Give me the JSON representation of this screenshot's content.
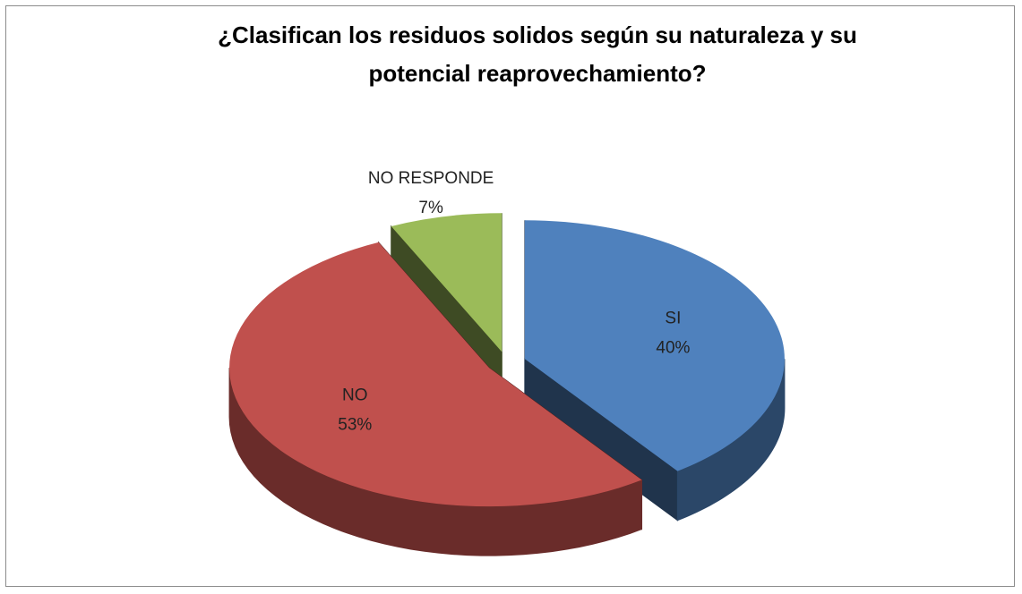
{
  "chart_data": {
    "type": "pie",
    "title": "¿Clasifican los residuos solidos según su naturaleza y su potencial reaprovechamiento?",
    "categories": [
      "SI",
      "NO",
      "NO RESPONDE"
    ],
    "values": [
      40,
      53,
      7
    ],
    "value_labels": [
      "40%",
      "53%",
      "7%"
    ],
    "colors": [
      "#4f81bd",
      "#c0504d",
      "#9bbb59"
    ],
    "exploded": true,
    "three_d": true
  }
}
